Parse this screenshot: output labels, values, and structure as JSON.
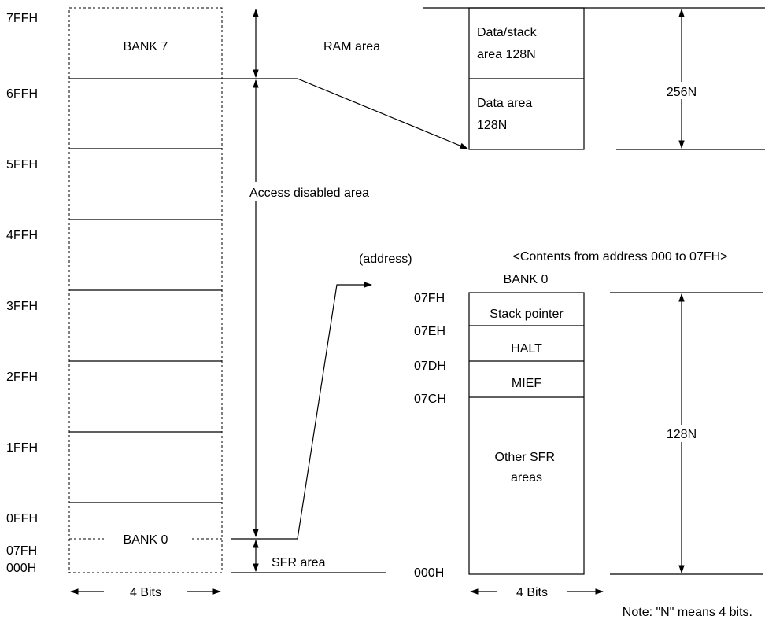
{
  "left_addresses": [
    "7FFH",
    "6FFH",
    "5FFH",
    "4FFH",
    "3FFH",
    "2FFH",
    "1FFH",
    "0FFH",
    "07FH",
    "000H"
  ],
  "left_column": {
    "top_bank": "BANK 7",
    "bottom_bank": "BANK 0",
    "width_label": "4 Bits"
  },
  "labels": {
    "ram_area": "RAM area",
    "access_disabled": "Access disabled area",
    "sfr_area": "SFR area",
    "address": "(address)"
  },
  "ram_detail": {
    "blocks": [
      "Data/stack\narea 128N",
      "Data area\n128N"
    ],
    "size": "256N"
  },
  "sfr_detail": {
    "caption": "<Contents from address 000 to 07FH>",
    "bank": "BANK 0",
    "addresses": [
      "07FH",
      "07EH",
      "07DH",
      "07CH",
      "000H"
    ],
    "rows": [
      "Stack pointer",
      "HALT",
      "MIEF",
      "Other SFR\nareas"
    ],
    "size": "128N",
    "width_label": "4 Bits"
  },
  "note": "Note:  \"N\" means 4 bits."
}
